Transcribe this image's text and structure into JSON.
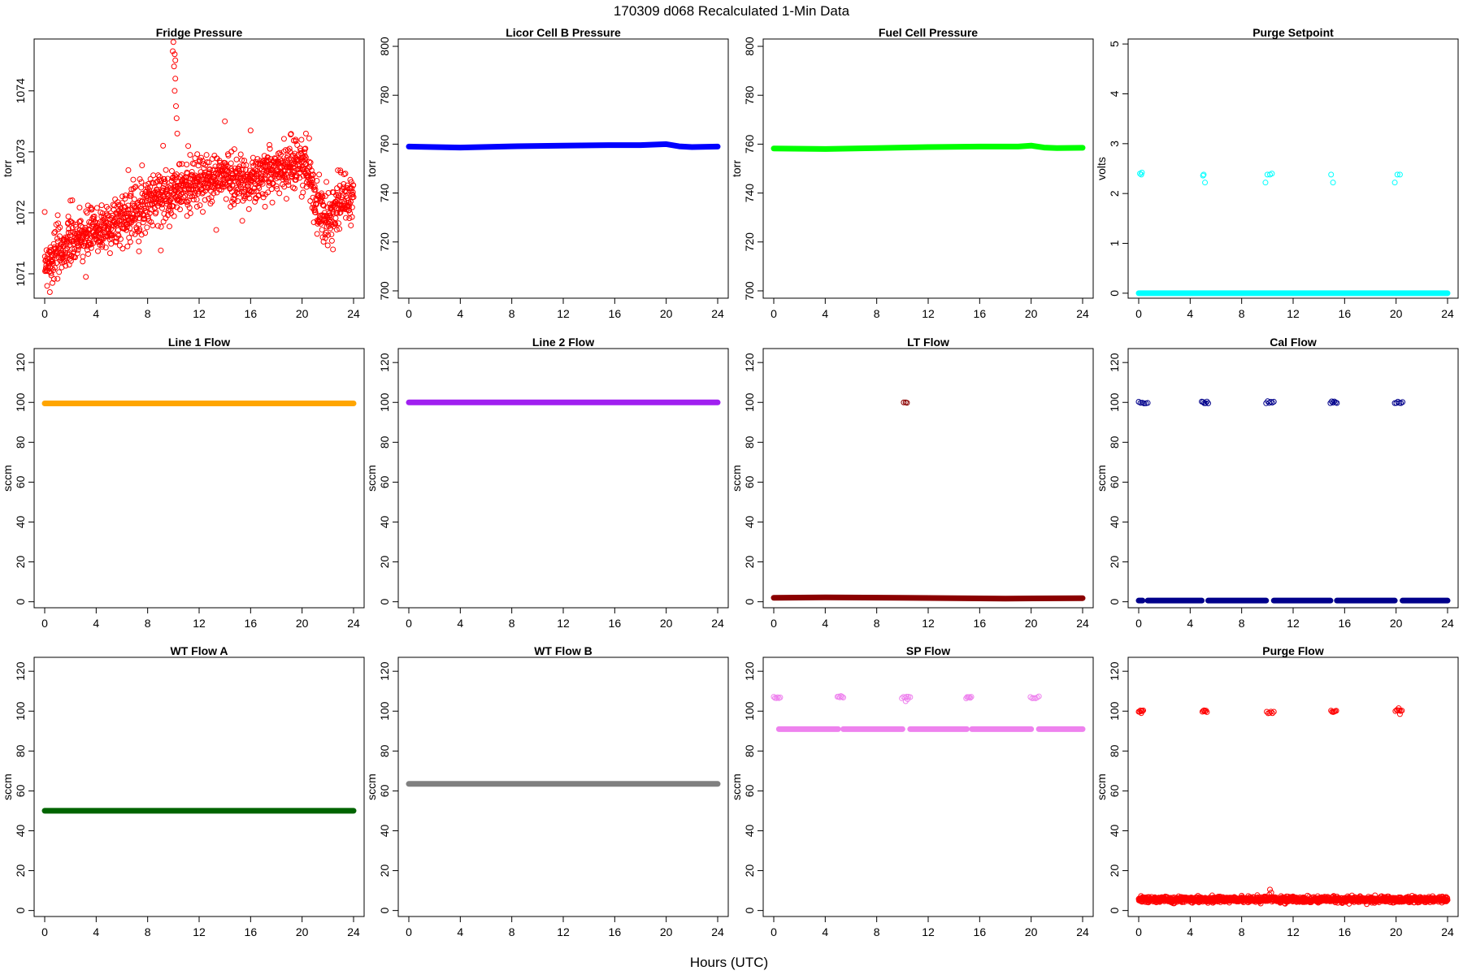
{
  "figure": {
    "title": "170309   d068   Recalculated 1-Min Data",
    "xlabel": "Hours (UTC)"
  },
  "chart_data": [
    {
      "type": "scatter",
      "title": "Fridge Pressure",
      "ylabel": "torr",
      "color": "#ff0000",
      "marker": "open-circle",
      "xlim": [
        0,
        24
      ],
      "ylim": [
        1070.6,
        1074.85
      ],
      "xticks": [
        0,
        4,
        8,
        12,
        16,
        20,
        24
      ],
      "yticks": [
        1071,
        1072,
        1073,
        1074
      ],
      "trend": [
        [
          0,
          1071.2
        ],
        [
          2,
          1071.5
        ],
        [
          4,
          1071.7
        ],
        [
          6,
          1071.9
        ],
        [
          8,
          1072.2
        ],
        [
          10,
          1072.35
        ],
        [
          12,
          1072.5
        ],
        [
          14,
          1072.6
        ],
        [
          16,
          1072.5
        ],
        [
          18,
          1072.7
        ],
        [
          19.5,
          1072.85
        ],
        [
          20.5,
          1072.7
        ],
        [
          21.2,
          1072.05
        ],
        [
          22,
          1071.95
        ],
        [
          23,
          1072.2
        ],
        [
          24,
          1072.25
        ]
      ],
      "spread": 0.38,
      "points": [
        [
          10.0,
          1074.8
        ],
        [
          10.1,
          1074.6
        ],
        [
          10.05,
          1074.4
        ],
        [
          10.15,
          1074.2
        ],
        [
          10.1,
          1074.0
        ],
        [
          10.2,
          1073.75
        ],
        [
          10.25,
          1073.55
        ],
        [
          10.3,
          1073.3
        ],
        [
          9.95,
          1074.65
        ],
        [
          10.15,
          1074.5
        ],
        [
          14.0,
          1073.5
        ],
        [
          16.0,
          1073.35
        ],
        [
          20.3,
          1073.3
        ],
        [
          9.2,
          1073.1
        ],
        [
          11.3,
          1072.95
        ],
        [
          22.4,
          1071.4
        ],
        [
          0.4,
          1070.7
        ],
        [
          0.6,
          1070.85
        ],
        [
          3.2,
          1070.95
        ],
        [
          21.6,
          1071.6
        ],
        [
          17.5,
          1073.05
        ],
        [
          19.5,
          1073.2
        ],
        [
          6.5,
          1072.7
        ],
        [
          2.0,
          1072.2
        ]
      ],
      "n": 1400
    },
    {
      "type": "scatter",
      "title": "Licor Cell B Pressure",
      "ylabel": "torr",
      "color": "#0000ff",
      "marker": "open-circle",
      "xlim": [
        0,
        24
      ],
      "ylim": [
        697,
        803
      ],
      "xticks": [
        0,
        4,
        8,
        12,
        16,
        20,
        24
      ],
      "yticks": [
        700,
        720,
        740,
        760,
        780,
        800
      ],
      "series": [
        [
          0,
          759.0
        ],
        [
          4,
          758.6
        ],
        [
          8,
          759.1
        ],
        [
          12,
          759.4
        ],
        [
          15.5,
          759.6
        ],
        [
          18,
          759.6
        ],
        [
          20,
          760.0
        ],
        [
          21,
          759.1
        ],
        [
          22,
          758.8
        ],
        [
          24,
          759.0
        ]
      ]
    },
    {
      "type": "scatter",
      "title": "Fuel Cell Pressure",
      "ylabel": "torr",
      "color": "#00ff00",
      "marker": "open-circle",
      "xlim": [
        0,
        24
      ],
      "ylim": [
        697,
        803
      ],
      "xticks": [
        0,
        4,
        8,
        12,
        16,
        20,
        24
      ],
      "yticks": [
        700,
        720,
        740,
        760,
        780,
        800
      ],
      "series": [
        [
          0,
          758.2
        ],
        [
          4,
          758.0
        ],
        [
          8,
          758.4
        ],
        [
          12,
          758.8
        ],
        [
          16,
          759.0
        ],
        [
          19,
          759.0
        ],
        [
          20,
          759.4
        ],
        [
          21,
          758.6
        ],
        [
          22,
          758.4
        ],
        [
          24,
          758.5
        ]
      ]
    },
    {
      "type": "scatter",
      "title": "Purge Setpoint",
      "ylabel": "volts",
      "color": "#00ffff",
      "marker": "open-circle",
      "xlim": [
        0,
        24
      ],
      "ylim": [
        -0.1,
        5.1
      ],
      "xticks": [
        0,
        4,
        8,
        12,
        16,
        20,
        24
      ],
      "yticks": [
        0,
        1,
        2,
        3,
        4,
        5
      ],
      "baseline": 0.0,
      "points": [
        [
          0.1,
          2.4
        ],
        [
          0.25,
          2.42
        ],
        [
          0.2,
          2.38
        ],
        [
          5.0,
          2.36
        ],
        [
          5.05,
          2.38
        ],
        [
          5.15,
          2.22
        ],
        [
          9.85,
          2.22
        ],
        [
          10.0,
          2.38
        ],
        [
          10.2,
          2.38
        ],
        [
          10.35,
          2.4
        ],
        [
          14.95,
          2.38
        ],
        [
          15.1,
          2.22
        ],
        [
          19.9,
          2.22
        ],
        [
          20.1,
          2.38
        ],
        [
          20.3,
          2.38
        ]
      ]
    },
    {
      "type": "scatter",
      "title": "Line 1 Flow",
      "ylabel": "sccm",
      "color": "#ffa500",
      "marker": "open-circle",
      "xlim": [
        0,
        24
      ],
      "ylim": [
        -3,
        127
      ],
      "xticks": [
        0,
        4,
        8,
        12,
        16,
        20,
        24
      ],
      "yticks": [
        0,
        20,
        40,
        60,
        80,
        100,
        120
      ],
      "series": [
        [
          0,
          99.5
        ],
        [
          24,
          99.5
        ]
      ]
    },
    {
      "type": "scatter",
      "title": "Line 2 Flow",
      "ylabel": "sccm",
      "color": "#a020f0",
      "marker": "open-circle",
      "xlim": [
        0,
        24
      ],
      "ylim": [
        -3,
        127
      ],
      "xticks": [
        0,
        4,
        8,
        12,
        16,
        20,
        24
      ],
      "yticks": [
        0,
        20,
        40,
        60,
        80,
        100,
        120
      ],
      "series": [
        [
          0,
          100.0
        ],
        [
          24,
          100.0
        ]
      ]
    },
    {
      "type": "scatter",
      "title": "LT Flow",
      "ylabel": "sccm",
      "color": "#8b0000",
      "marker": "open-circle",
      "xlim": [
        0,
        24
      ],
      "ylim": [
        -3,
        127
      ],
      "xticks": [
        0,
        4,
        8,
        12,
        16,
        20,
        24
      ],
      "yticks": [
        0,
        20,
        40,
        60,
        80,
        100,
        120
      ],
      "series": [
        [
          0,
          2.0
        ],
        [
          4,
          2.2
        ],
        [
          10,
          2.0
        ],
        [
          14,
          1.8
        ],
        [
          18,
          1.6
        ],
        [
          24,
          1.8
        ]
      ],
      "points": [
        [
          10.1,
          100.0
        ],
        [
          10.25,
          100.0
        ],
        [
          10.35,
          99.8
        ]
      ]
    },
    {
      "type": "scatter",
      "title": "Cal Flow",
      "ylabel": "sccm",
      "color": "#00008b",
      "marker": "open-circle",
      "xlim": [
        0,
        24
      ],
      "ylim": [
        -3,
        127
      ],
      "xticks": [
        0,
        4,
        8,
        12,
        16,
        20,
        24
      ],
      "yticks": [
        0,
        20,
        40,
        60,
        80,
        100,
        120
      ],
      "series": [
        [
          0.3,
          0.6
        ],
        [
          24,
          0.6
        ]
      ],
      "segments": [
        [
          0,
          0.3
        ],
        [
          0.7,
          4.9
        ],
        [
          5.4,
          9.9
        ],
        [
          10.5,
          14.9
        ],
        [
          15.4,
          19.9
        ],
        [
          20.5,
          24
        ]
      ],
      "bursts": [
        [
          0.0,
          0.7,
          100.0
        ],
        [
          4.9,
          5.4,
          100.0
        ],
        [
          9.9,
          10.5,
          100.0
        ],
        [
          14.9,
          15.4,
          100.0
        ],
        [
          19.9,
          20.5,
          100.0
        ]
      ]
    },
    {
      "type": "scatter",
      "title": "WT Flow A",
      "ylabel": "sccm",
      "color": "#006400",
      "marker": "open-circle",
      "xlim": [
        0,
        24
      ],
      "ylim": [
        -3,
        127
      ],
      "xticks": [
        0,
        4,
        8,
        12,
        16,
        20,
        24
      ],
      "yticks": [
        0,
        20,
        40,
        60,
        80,
        100,
        120
      ],
      "series": [
        [
          0,
          50.0
        ],
        [
          24,
          50.0
        ]
      ]
    },
    {
      "type": "scatter",
      "title": "WT Flow B",
      "ylabel": "sccm",
      "color": "#808080",
      "marker": "open-circle",
      "xlim": [
        0,
        24
      ],
      "ylim": [
        -3,
        127
      ],
      "xticks": [
        0,
        4,
        8,
        12,
        16,
        20,
        24
      ],
      "yticks": [
        0,
        20,
        40,
        60,
        80,
        100,
        120
      ],
      "series": [
        [
          0,
          63.5
        ],
        [
          24,
          63.5
        ]
      ]
    },
    {
      "type": "scatter",
      "title": "SP Flow",
      "ylabel": "sccm",
      "color": "#ee82ee",
      "marker": "open-circle",
      "xlim": [
        0,
        24
      ],
      "ylim": [
        -3,
        127
      ],
      "xticks": [
        0,
        4,
        8,
        12,
        16,
        20,
        24
      ],
      "yticks": [
        0,
        20,
        40,
        60,
        80,
        100,
        120
      ],
      "series": [
        [
          0.3,
          91.0
        ],
        [
          24,
          91.0
        ]
      ],
      "segments": [
        [
          0.4,
          5.0
        ],
        [
          5.4,
          10.0
        ],
        [
          10.6,
          15.0
        ],
        [
          15.4,
          20.0
        ],
        [
          20.6,
          24
        ]
      ],
      "bursts": [
        [
          0.0,
          0.5,
          107.0
        ],
        [
          4.95,
          5.4,
          107.0
        ],
        [
          9.95,
          10.6,
          107.0
        ],
        [
          14.95,
          15.35,
          107.0
        ],
        [
          19.95,
          20.6,
          107.0
        ]
      ],
      "points": [
        [
          10.25,
          105.0
        ],
        [
          10.4,
          106.0
        ]
      ]
    },
    {
      "type": "scatter",
      "title": "Purge Flow",
      "ylabel": "sccm",
      "color": "#ff0000",
      "marker": "open-circle",
      "xlim": [
        0,
        24
      ],
      "ylim": [
        -3,
        127
      ],
      "xticks": [
        0,
        4,
        8,
        12,
        16,
        20,
        24
      ],
      "yticks": [
        0,
        20,
        40,
        60,
        80,
        100,
        120
      ],
      "series": [
        [
          0,
          5.5
        ],
        [
          24,
          5.5
        ]
      ],
      "spread": 1.6,
      "n": 1300,
      "bursts": [
        [
          0.0,
          0.35,
          100.0
        ],
        [
          4.95,
          5.3,
          100.0
        ],
        [
          9.95,
          10.5,
          99.5
        ],
        [
          14.95,
          15.35,
          100.0
        ],
        [
          19.95,
          20.45,
          100.0
        ]
      ],
      "points": [
        [
          10.2,
          10.5
        ],
        [
          10.3,
          9.0
        ],
        [
          10.15,
          8.0
        ],
        [
          0.2,
          99.0
        ],
        [
          20.2,
          101.5
        ],
        [
          20.3,
          98.5
        ]
      ]
    }
  ]
}
